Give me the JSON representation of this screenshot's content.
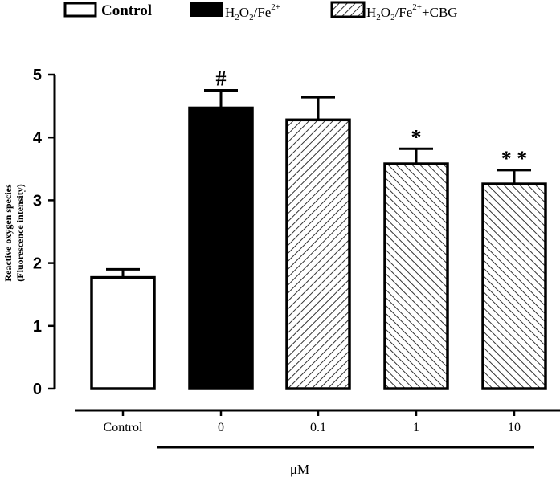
{
  "chart_data": {
    "type": "bar",
    "title": "",
    "ylabel_line1": "Reactive oxygen species",
    "ylabel_line2": "(Fluorescence intensity)",
    "xlabel": "μM",
    "ylim": [
      0,
      5
    ],
    "yticks": [
      "0",
      "1",
      "2",
      "3",
      "4",
      "5"
    ],
    "grid": false,
    "legend_position": "top",
    "legend": [
      {
        "label_main": "Control",
        "fill": "white"
      },
      {
        "label_main": "H2O2/Fe2+",
        "fill": "black"
      },
      {
        "label_main": "H2O2/Fe2++CBG",
        "fill": "hatch"
      }
    ],
    "categories": [
      "Control",
      "0",
      "0.1",
      "1",
      "10"
    ],
    "values": [
      1.77,
      4.47,
      4.28,
      3.58,
      3.26
    ],
    "errors": [
      0.13,
      0.28,
      0.36,
      0.24,
      0.22
    ],
    "fills": [
      "white",
      "black",
      "hatch-back",
      "hatch-fwd",
      "hatch-fwd"
    ],
    "annotations": [
      "",
      "#",
      "",
      "*",
      "* *"
    ]
  }
}
